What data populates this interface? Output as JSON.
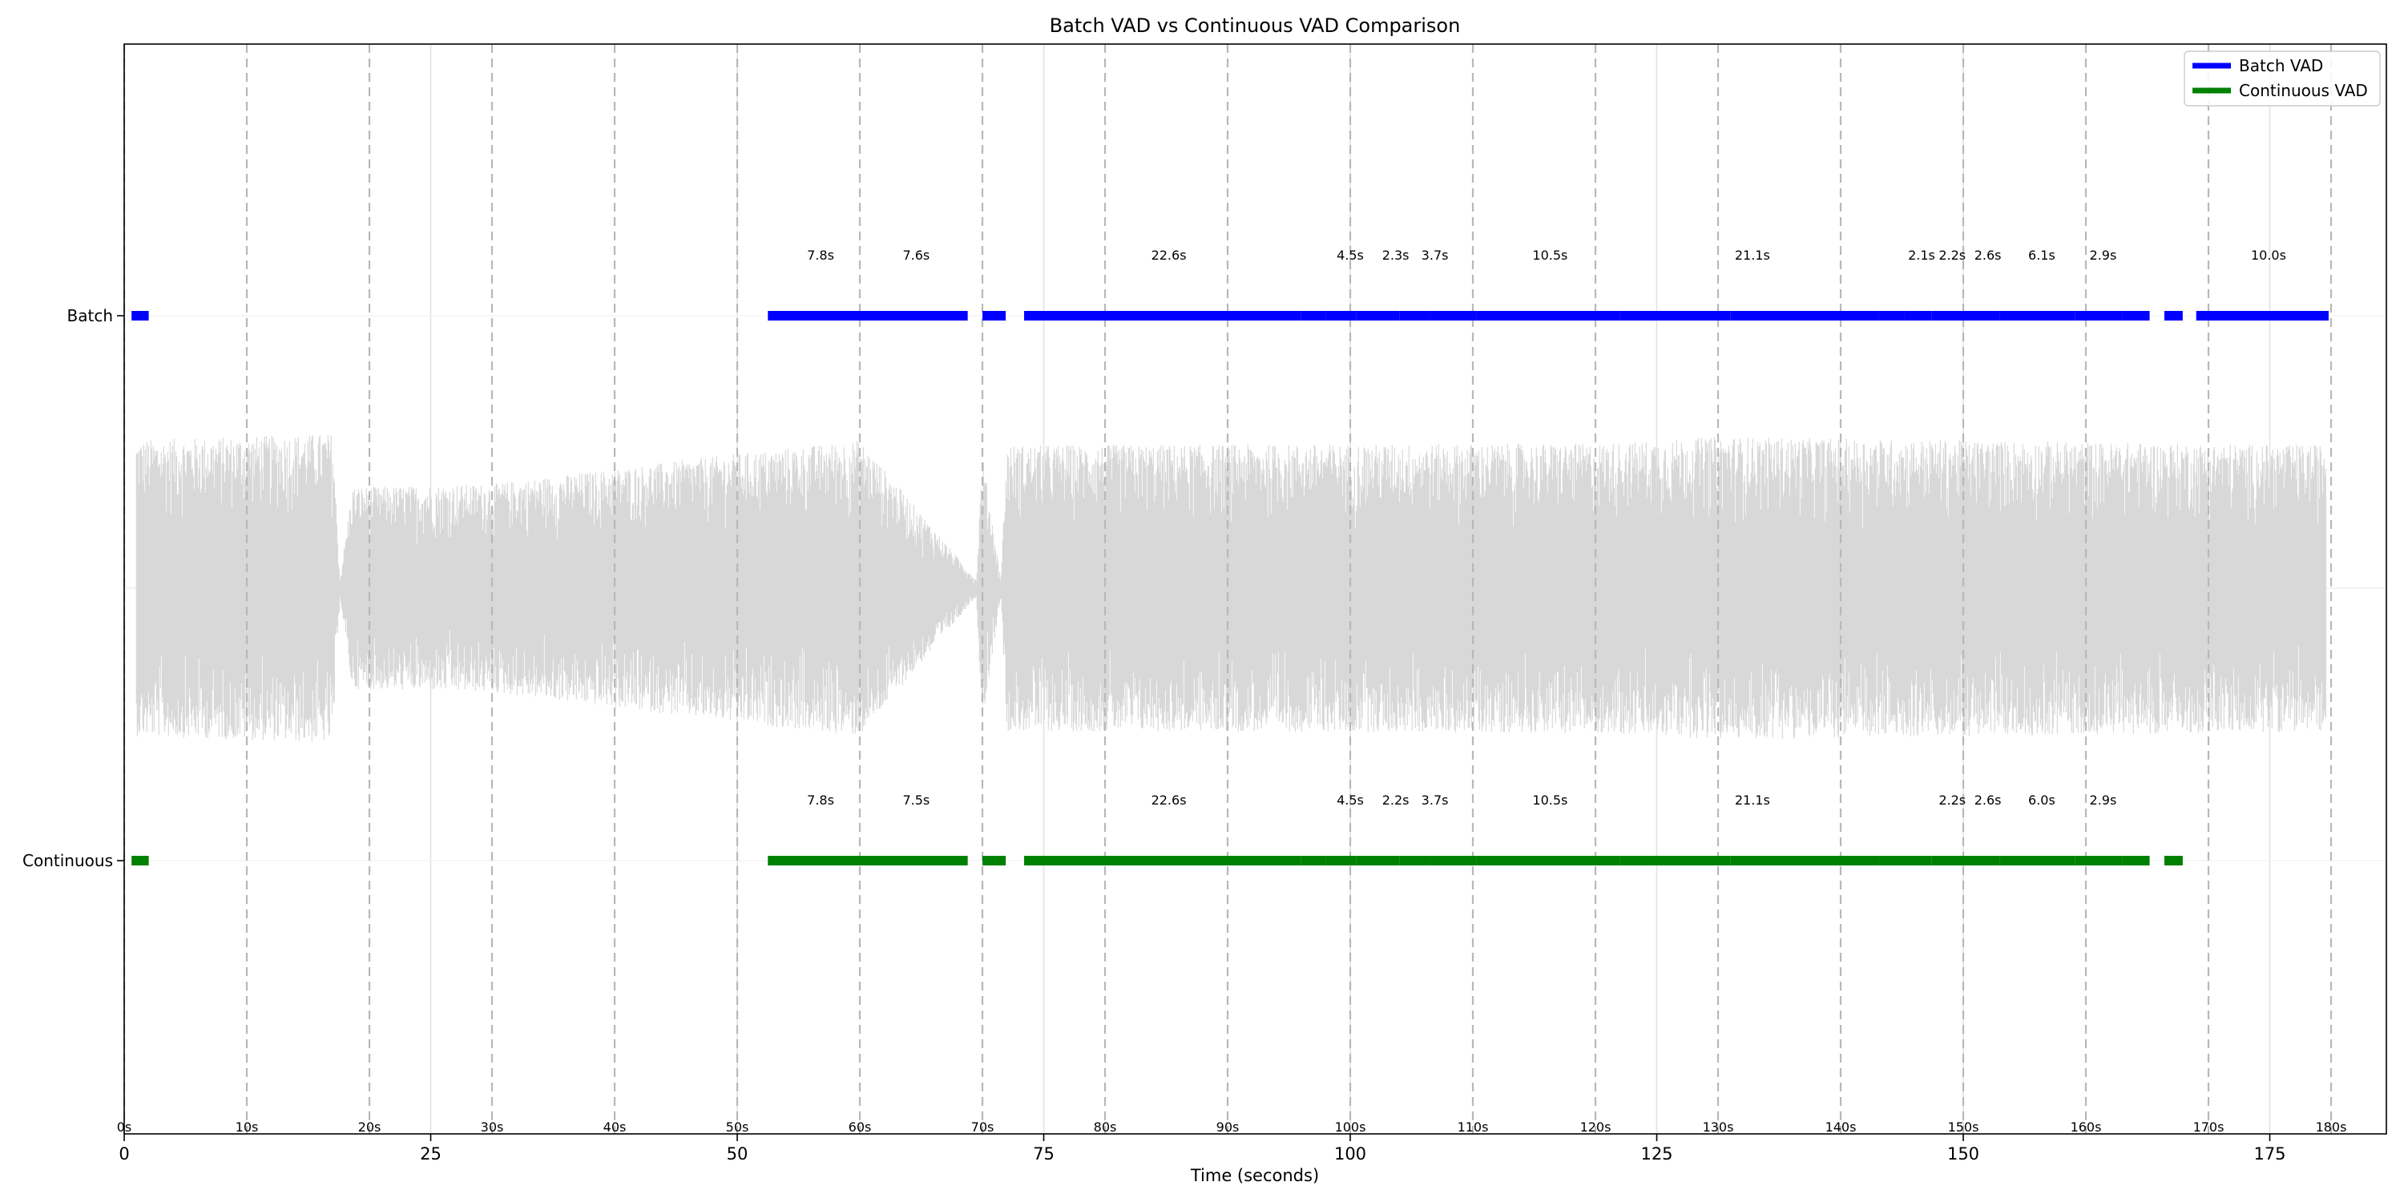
{
  "chart_data": {
    "type": "timeline",
    "title": "Batch VAD vs Continuous VAD Comparison",
    "xlabel": "Time (seconds)",
    "ylabel": "",
    "xlim": [
      0,
      185
    ],
    "grid": true,
    "legend_position": "top-right",
    "x_ticks": [
      0,
      25,
      50,
      75,
      100,
      125,
      150,
      175
    ],
    "x_tick_labels": [
      "0",
      "25",
      "50",
      "75",
      "100",
      "125",
      "150",
      "175"
    ],
    "marker_seconds": [
      0,
      10,
      20,
      30,
      40,
      50,
      60,
      70,
      80,
      90,
      100,
      110,
      120,
      130,
      140,
      150,
      160,
      170,
      180
    ],
    "marker_labels": [
      "0s",
      "10s",
      "20s",
      "30s",
      "40s",
      "50s",
      "60s",
      "70s",
      "80s",
      "90s",
      "100s",
      "110s",
      "120s",
      "130s",
      "140s",
      "150s",
      "160s",
      "170s",
      "180s"
    ],
    "series": [
      {
        "name": "Batch VAD",
        "row_label": "Batch",
        "color": "#0000ff",
        "segments": [
          [
            0.6,
            2.0
          ],
          [
            52.5,
            68.8
          ],
          [
            70.0,
            71.9
          ],
          [
            73.4,
            96.0
          ],
          [
            96.0,
            98.0
          ],
          [
            98.0,
            100.5
          ],
          [
            100.5,
            104.0
          ],
          [
            104.0,
            106.5
          ],
          [
            106.5,
            110.3
          ],
          [
            110.3,
            115.0
          ],
          [
            115.0,
            122.0
          ],
          [
            122.0,
            131.0
          ],
          [
            131.0,
            143.1
          ],
          [
            143.1,
            145.2
          ],
          [
            145.2,
            147.4
          ],
          [
            147.4,
            150.0
          ],
          [
            150.0,
            153.0
          ],
          [
            153.0,
            159.1
          ],
          [
            159.1,
            160.0
          ],
          [
            160.0,
            163.0
          ],
          [
            163.0,
            165.2
          ],
          [
            166.4,
            167.9
          ],
          [
            169.0,
            179.8
          ]
        ],
        "labels": [
          {
            "t": 56.8,
            "text": "7.8s"
          },
          {
            "t": 64.6,
            "text": "7.6s"
          },
          {
            "t": 85.2,
            "text": "22.6s"
          },
          {
            "t": 100.0,
            "text": "4.5s"
          },
          {
            "t": 103.7,
            "text": "2.3s"
          },
          {
            "t": 106.9,
            "text": "3.7s"
          },
          {
            "t": 116.3,
            "text": "10.5s"
          },
          {
            "t": 132.8,
            "text": "21.1s"
          },
          {
            "t": 146.6,
            "text": "2.1s"
          },
          {
            "t": 149.1,
            "text": "2.2s"
          },
          {
            "t": 152.0,
            "text": "2.6s"
          },
          {
            "t": 156.4,
            "text": "6.1s"
          },
          {
            "t": 161.4,
            "text": "2.9s"
          },
          {
            "t": 174.9,
            "text": "10.0s"
          }
        ]
      },
      {
        "name": "Continuous VAD",
        "row_label": "Continuous",
        "color": "#008000",
        "segments": [
          [
            0.6,
            2.0
          ],
          [
            52.5,
            68.8
          ],
          [
            70.0,
            71.9
          ],
          [
            73.4,
            96.0
          ],
          [
            96.0,
            98.0
          ],
          [
            98.0,
            100.5
          ],
          [
            100.5,
            104.0
          ],
          [
            104.0,
            106.5
          ],
          [
            106.5,
            110.3
          ],
          [
            110.3,
            115.0
          ],
          [
            115.0,
            122.0
          ],
          [
            122.0,
            131.0
          ],
          [
            131.0,
            143.1
          ],
          [
            143.1,
            147.4
          ],
          [
            147.4,
            150.0
          ],
          [
            150.0,
            153.0
          ],
          [
            153.0,
            159.1
          ],
          [
            159.1,
            160.0
          ],
          [
            160.0,
            163.0
          ],
          [
            163.0,
            165.2
          ],
          [
            166.4,
            167.9
          ]
        ],
        "labels": [
          {
            "t": 56.8,
            "text": "7.8s"
          },
          {
            "t": 64.6,
            "text": "7.5s"
          },
          {
            "t": 85.2,
            "text": "22.6s"
          },
          {
            "t": 100.0,
            "text": "4.5s"
          },
          {
            "t": 103.7,
            "text": "2.2s"
          },
          {
            "t": 106.9,
            "text": "3.7s"
          },
          {
            "t": 116.3,
            "text": "10.5s"
          },
          {
            "t": 132.8,
            "text": "21.1s"
          },
          {
            "t": 149.1,
            "text": "2.2s"
          },
          {
            "t": 152.0,
            "text": "2.6s"
          },
          {
            "t": 156.4,
            "text": "6.0s"
          },
          {
            "t": 161.4,
            "text": "2.9s"
          }
        ]
      }
    ],
    "waveform": {
      "color": "#d8d8d8",
      "t_start": 1.0,
      "t_end": 179.6,
      "amplitude_envelope": [
        [
          1.0,
          0.88
        ],
        [
          17.0,
          0.92
        ],
        [
          17.6,
          0.05
        ],
        [
          18.6,
          0.6
        ],
        [
          30.0,
          0.62
        ],
        [
          50.0,
          0.8
        ],
        [
          60.0,
          0.88
        ],
        [
          69.5,
          0.05
        ],
        [
          70.0,
          0.8
        ],
        [
          71.5,
          0.05
        ],
        [
          72.0,
          0.85
        ],
        [
          120.0,
          0.86
        ],
        [
          130.0,
          0.9
        ],
        [
          179.6,
          0.85
        ]
      ]
    }
  }
}
